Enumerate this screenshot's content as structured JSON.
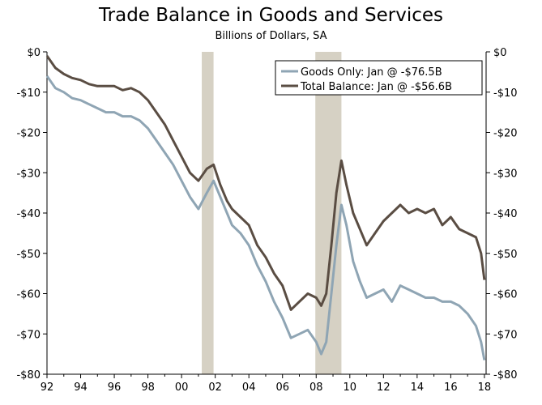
{
  "chart_data": {
    "type": "line",
    "title": "Trade Balance in Goods and Services",
    "subtitle": "Billions of Dollars, SA",
    "xlim": [
      1992,
      2018.1
    ],
    "ylim": [
      -80,
      0
    ],
    "x_ticks": [
      1992,
      1994,
      1996,
      1998,
      2000,
      2002,
      2004,
      2006,
      2008,
      2010,
      2012,
      2014,
      2016,
      2018
    ],
    "x_tick_labels": [
      "92",
      "94",
      "96",
      "98",
      "00",
      "02",
      "04",
      "06",
      "08",
      "10",
      "12",
      "14",
      "16",
      "18"
    ],
    "y_ticks": [
      0,
      -10,
      -20,
      -30,
      -40,
      -50,
      -60,
      -70,
      -80
    ],
    "y_tick_labels_left": [
      "$0",
      "-$10",
      "-$20",
      "-$30",
      "-$40",
      "-$50",
      "-$60",
      "-$70",
      "-$80"
    ],
    "y_tick_labels_right": [
      "$0",
      "-$10",
      "-$20",
      "-$30",
      "-$40",
      "-$50",
      "-$60",
      "-$70",
      "-$80"
    ],
    "legend_position": "top-right",
    "recession_bands": [
      [
        2001.2,
        2001.9
      ],
      [
        2007.95,
        2009.5
      ]
    ],
    "series": [
      {
        "name": "Goods Only: Jan @ -$76.5B",
        "color": "#8fa5b4",
        "points": [
          [
            1992.0,
            -6
          ],
          [
            1992.5,
            -9
          ],
          [
            1993.0,
            -10
          ],
          [
            1993.5,
            -11.5
          ],
          [
            1994.0,
            -12
          ],
          [
            1994.5,
            -13
          ],
          [
            1995.0,
            -14
          ],
          [
            1995.5,
            -15
          ],
          [
            1996.0,
            -15
          ],
          [
            1996.5,
            -16
          ],
          [
            1997.0,
            -16
          ],
          [
            1997.5,
            -17
          ],
          [
            1998.0,
            -19
          ],
          [
            1998.5,
            -22
          ],
          [
            1999.0,
            -25
          ],
          [
            1999.5,
            -28
          ],
          [
            2000.0,
            -32
          ],
          [
            2000.5,
            -36
          ],
          [
            2001.0,
            -39
          ],
          [
            2001.5,
            -35
          ],
          [
            2001.9,
            -32
          ],
          [
            2002.3,
            -36
          ],
          [
            2002.7,
            -40
          ],
          [
            2003.0,
            -43
          ],
          [
            2003.5,
            -45
          ],
          [
            2004.0,
            -48
          ],
          [
            2004.5,
            -53
          ],
          [
            2005.0,
            -57
          ],
          [
            2005.5,
            -62
          ],
          [
            2006.0,
            -66
          ],
          [
            2006.5,
            -71
          ],
          [
            2007.0,
            -70
          ],
          [
            2007.5,
            -69
          ],
          [
            2008.0,
            -72
          ],
          [
            2008.3,
            -75
          ],
          [
            2008.6,
            -72
          ],
          [
            2008.9,
            -60
          ],
          [
            2009.2,
            -48
          ],
          [
            2009.5,
            -38
          ],
          [
            2009.8,
            -43
          ],
          [
            2010.2,
            -52
          ],
          [
            2010.6,
            -57
          ],
          [
            2011.0,
            -61
          ],
          [
            2011.5,
            -60
          ],
          [
            2012.0,
            -59
          ],
          [
            2012.5,
            -62
          ],
          [
            2013.0,
            -58
          ],
          [
            2013.5,
            -59
          ],
          [
            2014.0,
            -60
          ],
          [
            2014.5,
            -61
          ],
          [
            2015.0,
            -61
          ],
          [
            2015.5,
            -62
          ],
          [
            2016.0,
            -62
          ],
          [
            2016.5,
            -63
          ],
          [
            2017.0,
            -65
          ],
          [
            2017.5,
            -68
          ],
          [
            2017.8,
            -72
          ],
          [
            2018.0,
            -76.5
          ]
        ]
      },
      {
        "name": "Total Balance: Jan @ -$56.6B",
        "color": "#5a4d43",
        "points": [
          [
            1992.0,
            -1
          ],
          [
            1992.5,
            -4
          ],
          [
            1993.0,
            -5.5
          ],
          [
            1993.5,
            -6.5
          ],
          [
            1994.0,
            -7
          ],
          [
            1994.5,
            -8
          ],
          [
            1995.0,
            -8.5
          ],
          [
            1995.5,
            -8.5
          ],
          [
            1996.0,
            -8.5
          ],
          [
            1996.5,
            -9.5
          ],
          [
            1997.0,
            -9
          ],
          [
            1997.5,
            -10
          ],
          [
            1998.0,
            -12
          ],
          [
            1998.5,
            -15
          ],
          [
            1999.0,
            -18
          ],
          [
            1999.5,
            -22
          ],
          [
            2000.0,
            -26
          ],
          [
            2000.5,
            -30
          ],
          [
            2001.0,
            -32
          ],
          [
            2001.5,
            -29
          ],
          [
            2001.9,
            -28
          ],
          [
            2002.3,
            -33
          ],
          [
            2002.7,
            -37
          ],
          [
            2003.0,
            -39
          ],
          [
            2003.5,
            -41
          ],
          [
            2004.0,
            -43
          ],
          [
            2004.5,
            -48
          ],
          [
            2005.0,
            -51
          ],
          [
            2005.5,
            -55
          ],
          [
            2006.0,
            -58
          ],
          [
            2006.5,
            -64
          ],
          [
            2007.0,
            -62
          ],
          [
            2007.5,
            -60
          ],
          [
            2008.0,
            -61
          ],
          [
            2008.3,
            -63
          ],
          [
            2008.6,
            -60
          ],
          [
            2008.9,
            -48
          ],
          [
            2009.2,
            -35
          ],
          [
            2009.5,
            -27
          ],
          [
            2009.8,
            -33
          ],
          [
            2010.2,
            -40
          ],
          [
            2010.6,
            -44
          ],
          [
            2011.0,
            -48
          ],
          [
            2011.5,
            -45
          ],
          [
            2012.0,
            -42
          ],
          [
            2012.5,
            -40
          ],
          [
            2013.0,
            -38
          ],
          [
            2013.5,
            -40
          ],
          [
            2014.0,
            -39
          ],
          [
            2014.5,
            -40
          ],
          [
            2015.0,
            -39
          ],
          [
            2015.5,
            -43
          ],
          [
            2016.0,
            -41
          ],
          [
            2016.5,
            -44
          ],
          [
            2017.0,
            -45
          ],
          [
            2017.5,
            -46
          ],
          [
            2017.8,
            -50
          ],
          [
            2018.0,
            -56.6
          ]
        ]
      }
    ]
  }
}
